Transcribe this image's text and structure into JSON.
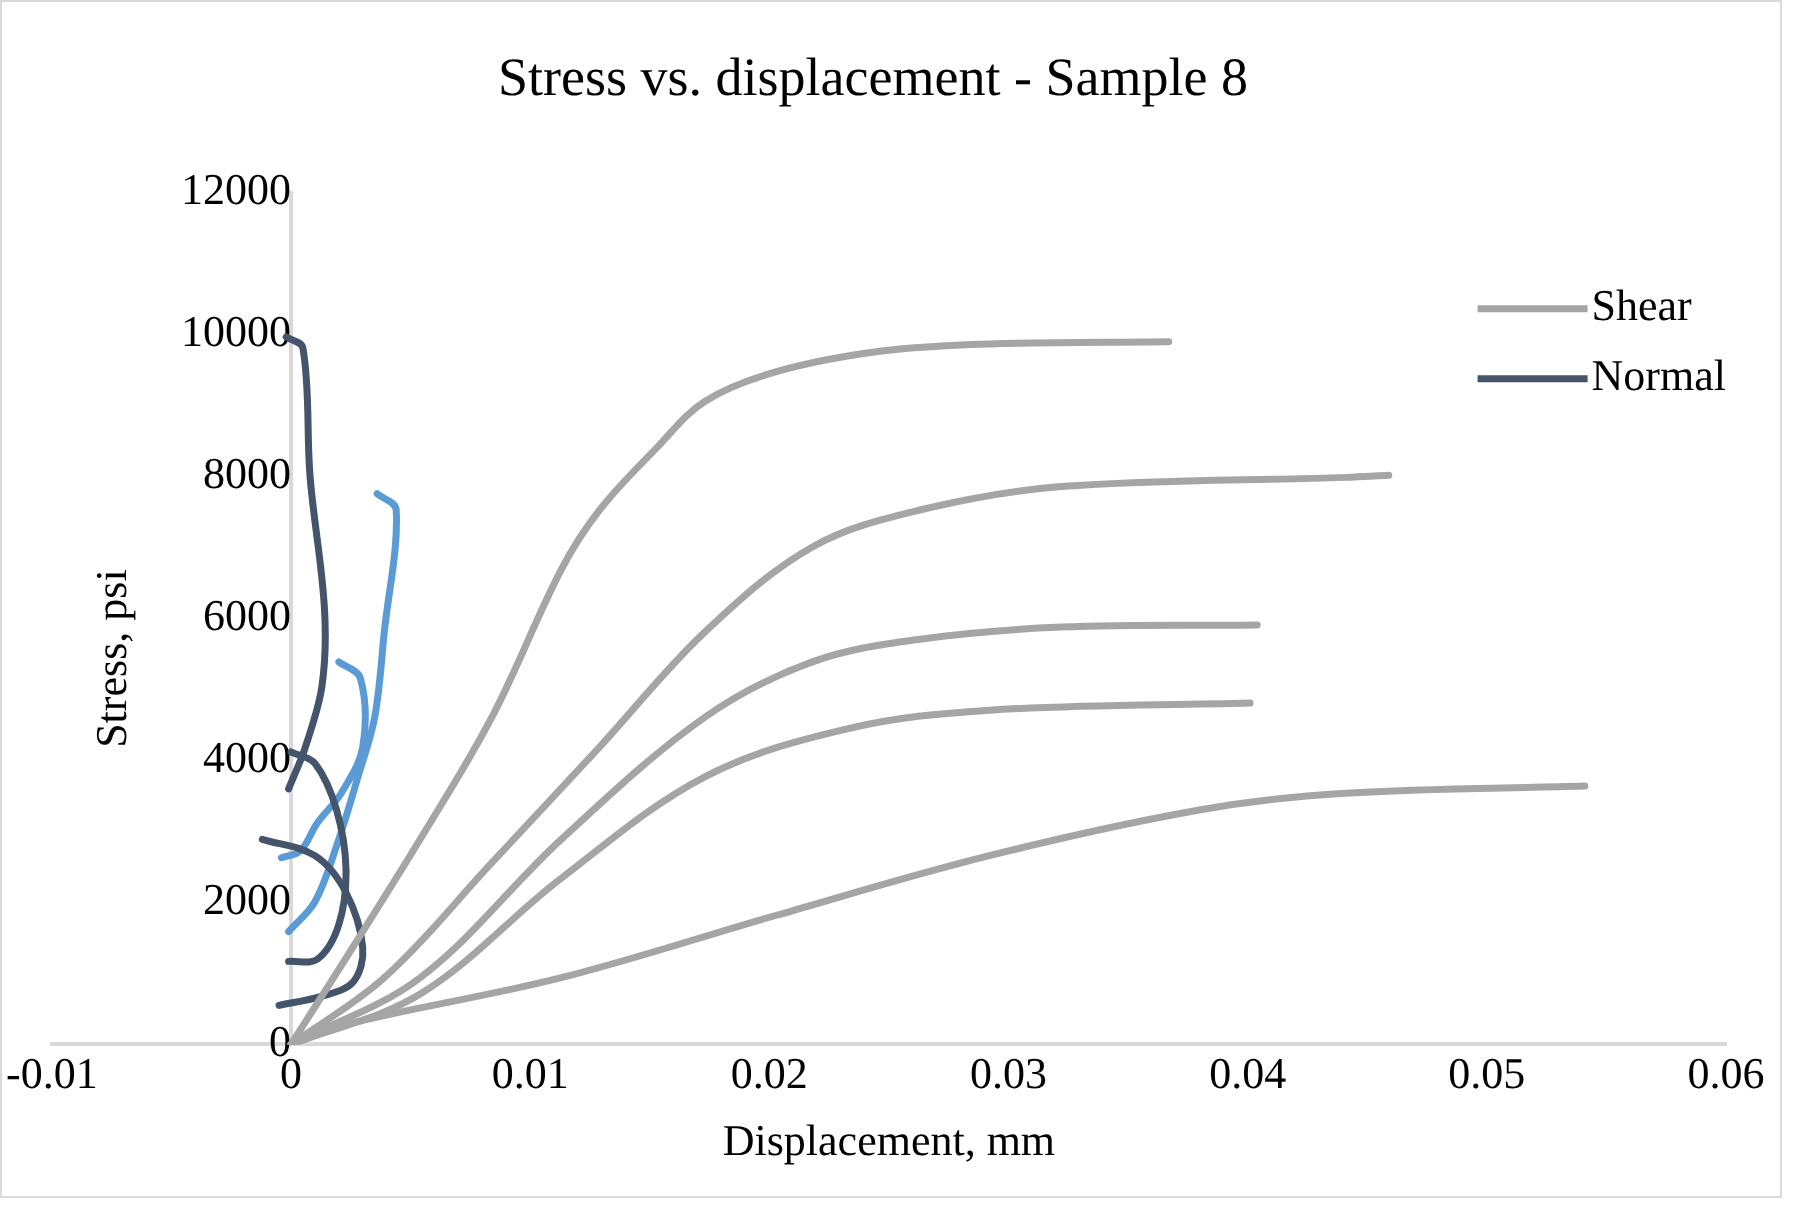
{
  "chart_data": {
    "type": "line",
    "title": "Stress vs. displacement - Sample 8",
    "xlabel": "Displacement, mm",
    "ylabel": "Stress, psi",
    "xlim": [
      -0.01,
      0.06
    ],
    "xticks": [
      -0.01,
      0,
      0.01,
      0.02,
      0.03,
      0.04,
      0.05,
      0.06
    ],
    "ylim": [
      0,
      12000
    ],
    "yticks": [
      0,
      2000,
      4000,
      6000,
      8000,
      10000,
      12000
    ],
    "grid": false,
    "legend": "top right",
    "marker": "none",
    "line_style": "solid",
    "series": [
      {
        "name": "Shear",
        "color": "#a5a5a5",
        "x": [
          0,
          0.0024,
          0.0054,
          0.0084,
          0.0113,
          0.0129,
          0.0153,
          0.0173,
          0.0203,
          0.0247,
          0.0292,
          0.0367
        ],
        "values": [
          0,
          1270,
          2890,
          4610,
          6690,
          7530,
          8410,
          9060,
          9480,
          9770,
          9870,
          9900
        ]
      },
      {
        "color": "#a5a5a5",
        "x": [
          0,
          0.0039,
          0.0084,
          0.0129,
          0.0173,
          0.0218,
          0.0263,
          0.0322,
          0.0441,
          0.0459
        ],
        "values": [
          0,
          940,
          2560,
          4190,
          5810,
          7010,
          7530,
          7860,
          7990,
          8020
        ]
      },
      {
        "color": "#a5a5a5",
        "x": [
          0,
          0.0054,
          0.0113,
          0.0173,
          0.0218,
          0.0263,
          0.0322,
          0.0404
        ],
        "values": [
          0,
          940,
          2890,
          4610,
          5390,
          5710,
          5880,
          5910
        ]
      },
      {
        "color": "#a5a5a5",
        "x": [
          0,
          0.0054,
          0.0113,
          0.0173,
          0.0233,
          0.0292,
          0.0401
        ],
        "values": [
          0,
          710,
          2340,
          3770,
          4450,
          4710,
          4810
        ]
      },
      {
        "color": "#a5a5a5",
        "x": [
          0,
          0.0024,
          0.0113,
          0.0203,
          0.0292,
          0.0381,
          0.0441,
          0.0541
        ],
        "values": [
          0,
          290,
          940,
          1820,
          2660,
          3310,
          3540,
          3640
        ]
      },
      {
        "name": "Normal",
        "color": "#44546a",
        "x": [
          -0.0002,
          0.0005,
          0.0008,
          0.0014,
          0.0013,
          0.0006,
          -0.0001
        ],
        "values": [
          9970,
          9810,
          7990,
          6140,
          5060,
          4190,
          3600
        ]
      },
      {
        "color": "#44546a",
        "x": [
          0,
          0.001,
          0.0019,
          0.0023,
          0.002,
          0.0011,
          -0.0001
        ],
        "values": [
          4120,
          3960,
          3310,
          2470,
          1690,
          1200,
          1170
        ]
      },
      {
        "color": "#44546a",
        "x": [
          -0.0012,
          0.001,
          0.0023,
          0.003,
          0.0026,
          0.0013,
          -0.0005
        ],
        "values": [
          2890,
          2660,
          2140,
          1360,
          880,
          680,
          550
        ]
      },
      {
        "color": "#5b9bd5",
        "x": [
          0.0036,
          0.0044,
          0.0039,
          0.0035,
          0.0028,
          0.0019,
          0.001,
          -0.0001
        ],
        "values": [
          7760,
          7530,
          5810,
          4610,
          3770,
          2790,
          2010,
          1590
        ]
      },
      {
        "color": "#5b9bd5",
        "x": [
          0.002,
          0.0029,
          0.003,
          0.0021,
          0.0011,
          0.0004,
          -0.0004
        ],
        "values": [
          5390,
          5160,
          4190,
          3540,
          3120,
          2730,
          2630
        ]
      }
    ]
  }
}
